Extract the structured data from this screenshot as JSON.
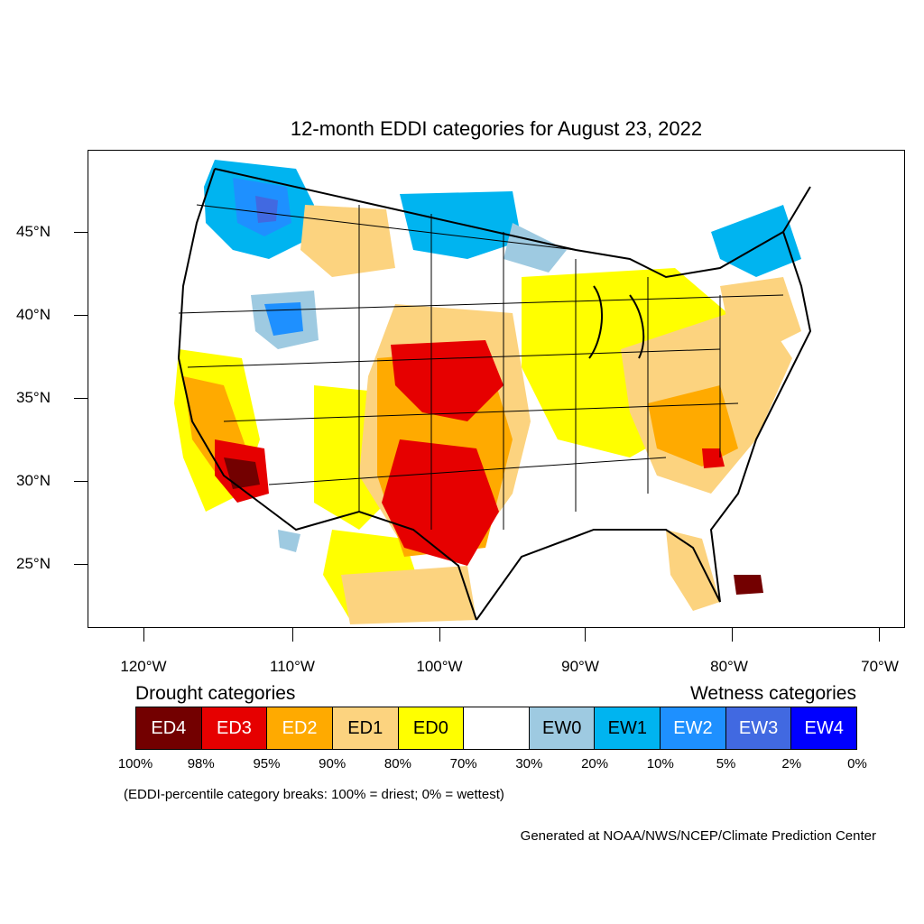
{
  "title": "12-month EDDI categories for August 23, 2022",
  "lat_labels": [
    "45°N",
    "40°N",
    "35°N",
    "30°N",
    "25°N"
  ],
  "lon_labels": [
    "120°W",
    "110°W",
    "100°W",
    "90°W",
    "80°W",
    "70°W"
  ],
  "legend": {
    "drought_heading": "Drought categories",
    "wetness_heading": "Wetness categories",
    "categories": [
      {
        "label": "ED4",
        "color": "#730000",
        "text_color": "#ffffff"
      },
      {
        "label": "ED3",
        "color": "#e60000",
        "text_color": "#ffffff"
      },
      {
        "label": "ED2",
        "color": "#ffaa00",
        "text_color": "#ffffff"
      },
      {
        "label": "ED1",
        "color": "#fcd37f",
        "text_color": "#000000"
      },
      {
        "label": "ED0",
        "color": "#ffff00",
        "text_color": "#000000"
      },
      {
        "label": "",
        "color": "#ffffff",
        "text_color": "#000000"
      },
      {
        "label": "EW0",
        "color": "#9ecae1",
        "text_color": "#000000"
      },
      {
        "label": "EW1",
        "color": "#00b4f0",
        "text_color": "#000000"
      },
      {
        "label": "EW2",
        "color": "#1e90ff",
        "text_color": "#ffffff"
      },
      {
        "label": "EW3",
        "color": "#4169e1",
        "text_color": "#ffffff"
      },
      {
        "label": "EW4",
        "color": "#0000ff",
        "text_color": "#ffffff"
      }
    ],
    "breaks": [
      "100%",
      "98%",
      "95%",
      "90%",
      "80%",
      "70%",
      "30%",
      "20%",
      "10%",
      "5%",
      "2%",
      "0%"
    ]
  },
  "breaks_note": "(EDDI-percentile category breaks: 100% = driest; 0% = wettest)",
  "credit": "Generated at NOAA/NWS/NCEP/Climate Prediction Center"
}
